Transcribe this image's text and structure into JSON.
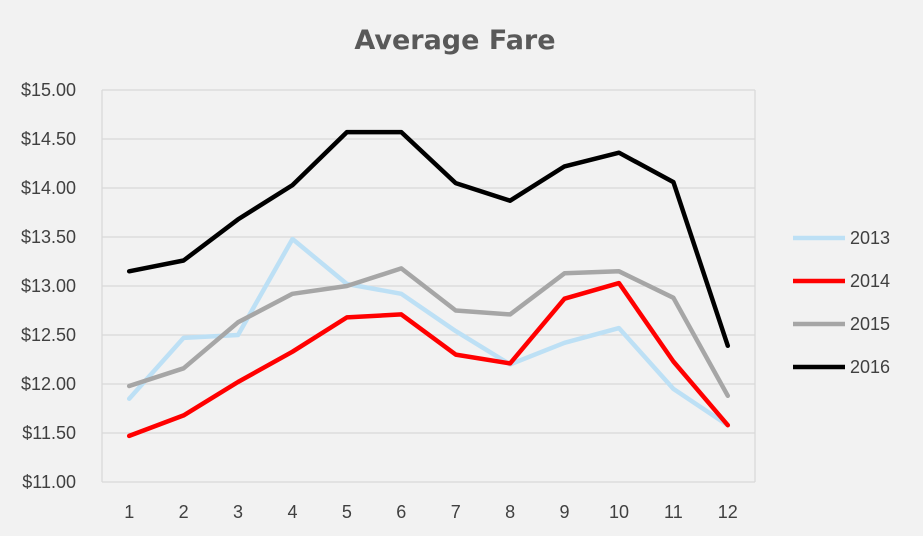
{
  "chart_data": {
    "type": "line",
    "title": "Average Fare",
    "x": [
      1,
      2,
      3,
      4,
      5,
      6,
      7,
      8,
      9,
      10,
      11,
      12
    ],
    "x_tick_labels": [
      "1",
      "2",
      "3",
      "4",
      "5",
      "6",
      "7",
      "8",
      "9",
      "10",
      "11",
      "12"
    ],
    "ylim": [
      11.0,
      15.0
    ],
    "y_tick_labels": [
      "$11.00",
      "$11.50",
      "$12.00",
      "$12.50",
      "$13.00",
      "$13.50",
      "$14.00",
      "$14.50",
      "$15.00"
    ],
    "y_ticks": [
      11.0,
      11.5,
      12.0,
      12.5,
      13.0,
      13.5,
      14.0,
      14.5,
      15.0
    ],
    "grid": true,
    "legend_position": "right",
    "series": [
      {
        "name": "2013",
        "color": "#bde0f5",
        "values": [
          11.85,
          12.47,
          12.5,
          13.48,
          13.02,
          12.92,
          12.54,
          12.2,
          12.42,
          12.57,
          11.95,
          11.58
        ]
      },
      {
        "name": "2014",
        "color": "#ff0000",
        "values": [
          11.47,
          11.68,
          12.02,
          12.33,
          12.68,
          12.71,
          12.3,
          12.21,
          12.87,
          13.03,
          12.23,
          11.58
        ]
      },
      {
        "name": "2015",
        "color": "#a6a6a6",
        "values": [
          11.98,
          12.16,
          12.63,
          12.92,
          13.0,
          13.18,
          12.75,
          12.71,
          13.13,
          13.15,
          12.88,
          11.88
        ]
      },
      {
        "name": "2016",
        "color": "#000000",
        "values": [
          13.15,
          13.26,
          13.68,
          14.03,
          14.57,
          14.57,
          14.05,
          13.87,
          14.22,
          14.36,
          14.06,
          12.39
        ]
      }
    ]
  }
}
